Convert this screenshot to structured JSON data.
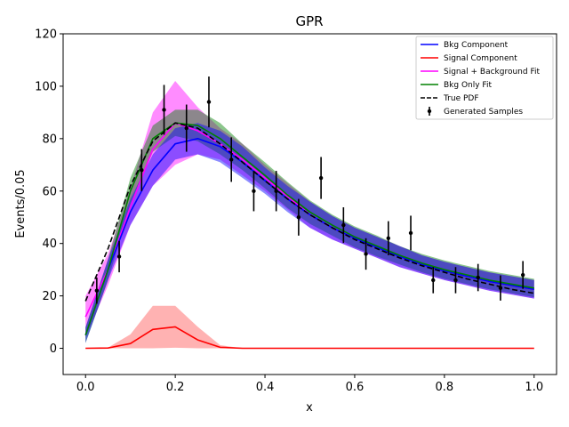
{
  "chart_data": {
    "type": "line",
    "title": "GPR",
    "xlabel": "x",
    "ylabel": "Events/0.05",
    "xlim": [
      -0.05,
      1.05
    ],
    "ylim": [
      -10,
      120
    ],
    "xticks": [
      "0.0",
      "0.2",
      "0.4",
      "0.6",
      "0.8",
      "1.0"
    ],
    "xtick_values": [
      0.0,
      0.2,
      0.4,
      0.6,
      0.8,
      1.0
    ],
    "yticks": [
      "0",
      "20",
      "40",
      "60",
      "80",
      "100",
      "120"
    ],
    "ytick_values": [
      0,
      20,
      40,
      60,
      80,
      100,
      120
    ],
    "legend_position": "top-right",
    "colors": {
      "bkg": "#0000ff",
      "signal": "#ff0000",
      "sig_bkg": "#ff00ff",
      "bkg_only": "#008000",
      "true_pdf": "#000000",
      "samples": "#000000"
    },
    "legend": [
      {
        "key": "bkg",
        "label": "Bkg Component"
      },
      {
        "key": "signal",
        "label": "Signal Component"
      },
      {
        "key": "sig_bkg",
        "label": "Signal + Background Fit"
      },
      {
        "key": "bkg_only",
        "label": "Bkg Only Fit"
      },
      {
        "key": "true_pdf",
        "label": "True PDF"
      },
      {
        "key": "samples",
        "label": "Generated Samples"
      }
    ],
    "x": [
      0.0,
      0.05,
      0.1,
      0.15,
      0.2,
      0.25,
      0.3,
      0.35,
      0.4,
      0.45,
      0.5,
      0.55,
      0.6,
      0.65,
      0.7,
      0.75,
      0.8,
      0.85,
      0.9,
      0.95,
      1.0
    ],
    "series": [
      {
        "name": "Bkg Component",
        "key": "bkg",
        "values": [
          5,
          30,
          52,
          68,
          78,
          80,
          77,
          71,
          64,
          57,
          51,
          46,
          42,
          38.5,
          35,
          32,
          29.5,
          27.5,
          25.5,
          24,
          22.5
        ],
        "band": [
          3,
          4,
          5,
          6,
          6,
          6,
          6,
          6,
          5,
          5,
          5,
          4.5,
          4,
          4,
          4,
          3.5,
          3.5,
          3.5,
          3.5,
          3.5,
          3.5
        ]
      },
      {
        "name": "Signal Component",
        "key": "signal",
        "values": [
          0,
          0.1,
          1.8,
          7.2,
          8.2,
          3.2,
          0.4,
          0,
          0,
          0,
          0,
          0,
          0,
          0,
          0,
          0,
          0,
          0,
          0,
          0,
          0
        ],
        "band": [
          0,
          0.2,
          3.5,
          9,
          8,
          5,
          0.8,
          0,
          0,
          0,
          0,
          0,
          0,
          0,
          0,
          0,
          0,
          0,
          0,
          0,
          0
        ]
      },
      {
        "name": "Signal + Background Fit",
        "key": "sig_bkg",
        "values": [
          12,
          30,
          54,
          76,
          86,
          83,
          78,
          72,
          65,
          58,
          51,
          46,
          42,
          38.5,
          35,
          32,
          29.5,
          27.5,
          25.5,
          24,
          22.5
        ],
        "band": [
          8,
          6,
          7,
          14,
          16,
          9,
          6,
          6,
          5,
          5,
          5,
          4.5,
          4,
          4,
          4,
          3.5,
          3.5,
          3.5,
          3.5,
          3.5,
          3.5
        ]
      },
      {
        "name": "Bkg Only Fit",
        "key": "bkg_only",
        "values": [
          5,
          30,
          60,
          80,
          86,
          85,
          80,
          73,
          66,
          58.5,
          52,
          47,
          42.5,
          39,
          35.5,
          32.5,
          30,
          28,
          26,
          24.5,
          23
        ],
        "band": [
          3,
          4,
          5,
          5,
          5,
          6,
          6,
          5,
          5,
          5,
          4.5,
          4,
          4,
          4,
          3.5,
          3.5,
          3.5,
          3.5,
          3.5,
          3.5,
          3.5
        ]
      },
      {
        "name": "True PDF",
        "key": "true_pdf",
        "dashed": true,
        "values": [
          18,
          38,
          62,
          79,
          86,
          84,
          78,
          71,
          64,
          57,
          51,
          46,
          41.5,
          38,
          34.5,
          31.5,
          29,
          26.5,
          24.5,
          22.5,
          21
        ],
        "band": null
      }
    ],
    "samples": {
      "name": "Generated Samples",
      "x": [
        0.025,
        0.075,
        0.125,
        0.175,
        0.225,
        0.275,
        0.325,
        0.375,
        0.425,
        0.475,
        0.525,
        0.575,
        0.625,
        0.675,
        0.725,
        0.775,
        0.825,
        0.875,
        0.925,
        0.975
      ],
      "y": [
        22,
        35,
        68,
        91,
        84,
        94,
        72,
        60,
        60,
        50,
        65,
        47,
        36,
        42,
        44,
        26,
        26,
        27,
        23,
        28
      ],
      "err": [
        5,
        6,
        8,
        9.5,
        9,
        9.7,
        8.5,
        7.7,
        7.7,
        7,
        8,
        6.8,
        6,
        6.5,
        6.6,
        5,
        5,
        5.2,
        4.8,
        5.3
      ]
    }
  }
}
